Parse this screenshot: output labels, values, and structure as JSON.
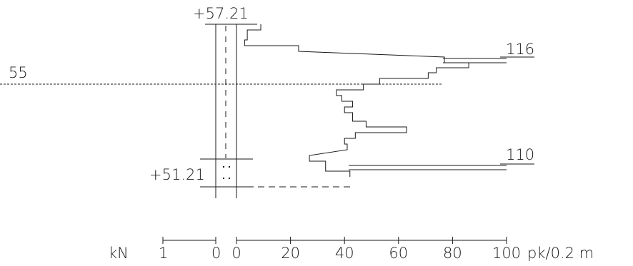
{
  "elevation_labels": {
    "top": "+57.21",
    "bottom": "+51.21",
    "level": "55"
  },
  "off_scale_labels": [
    "116",
    "110"
  ],
  "scale": {
    "force_unit": "kN",
    "force_ticks": [
      "1",
      "0"
    ],
    "pk_ticks": [
      "0",
      "20",
      "40",
      "60",
      "80",
      "100"
    ],
    "pk_unit": "pk/0.2 m"
  },
  "chart_data": {
    "type": "step",
    "xlim": [
      0,
      100
    ],
    "x_unit": "pk/0.2 m",
    "depth_range": [
      57.21,
      51.21
    ],
    "reference_level": 55,
    "profile_pk": [
      9,
      9,
      4,
      4,
      3,
      3,
      23,
      23,
      116,
      116,
      77,
      77,
      86,
      86,
      74,
      74,
      71,
      71,
      53,
      53,
      47,
      47,
      37,
      37,
      39,
      39,
      43,
      43,
      40,
      40,
      43,
      43,
      48,
      48,
      63,
      63,
      44,
      44,
      40,
      40,
      41,
      41,
      110,
      110,
      27,
      27,
      33,
      33,
      42,
      42
    ],
    "off_scale_values": [
      116,
      110
    ]
  }
}
